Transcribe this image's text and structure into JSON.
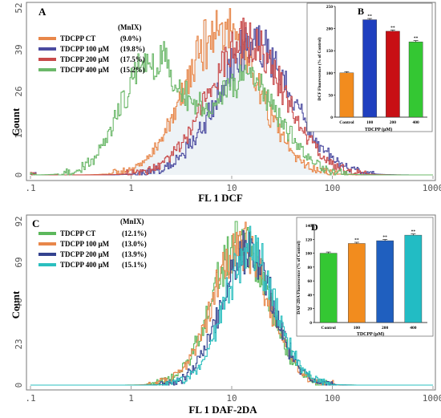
{
  "chart_data": [
    {
      "type": "line",
      "panel": "A",
      "xlabel": "FL 1 DCF",
      "ylabel": "Count",
      "xscale": "log",
      "xlim": [
        0.1,
        1000
      ],
      "ylim": [
        0,
        52
      ],
      "x_ticks": [
        ".1",
        "1",
        "10",
        "100",
        "1000"
      ],
      "y_ticks": [
        "0",
        "13",
        "26",
        "39",
        "52"
      ],
      "legend_header": "(MnIX)",
      "series": [
        {
          "name": "TDCPP CT",
          "mnix": "(9.0%)",
          "color": "#e8874a",
          "peak_x": 8,
          "peak_y": 46,
          "spread": 0.36
        },
        {
          "name": "TDCPP 100 µM",
          "mnix": "(19.8%)",
          "color": "#4b4ba0",
          "peak_x": 17,
          "peak_y": 40,
          "spread": 0.38
        },
        {
          "name": "TDCPP 200 µM",
          "mnix": "(17.5%)",
          "color": "#c84a4a",
          "peak_x": 14,
          "peak_y": 42,
          "spread": 0.38
        },
        {
          "name": "TDCPP 400 µM",
          "mnix": "(15.2%)",
          "color": "#6cb86a",
          "peak_x": 1.6,
          "peak_y": 36,
          "spread": 0.3,
          "second_peak_x": 14,
          "second_peak_y": 30
        }
      ]
    },
    {
      "type": "bar",
      "panel": "B",
      "xlabel": "TDCPP (µM)",
      "ylabel": "DCF Fluorescence (% of Control)",
      "ylim": [
        0,
        250
      ],
      "y_ticks": [
        "0",
        "50",
        "100",
        "150",
        "200",
        "250"
      ],
      "categories": [
        "Control",
        "100",
        "200",
        "400"
      ],
      "values": [
        100,
        220,
        194,
        170
      ],
      "colors": [
        "#f28c1e",
        "#1f3fbf",
        "#c80f14",
        "#34c733"
      ],
      "annotations": [
        "",
        "**",
        "**",
        "**"
      ]
    },
    {
      "type": "line",
      "panel": "C",
      "xlabel": "FL 1 DAF-2DA",
      "ylabel": "Count",
      "xscale": "log",
      "xlim": [
        0.1,
        1000
      ],
      "ylim": [
        0,
        92
      ],
      "x_ticks": [
        ".1",
        "1",
        "10",
        "100",
        "1000"
      ],
      "y_ticks": [
        "0",
        "23",
        "46",
        "69",
        "92"
      ],
      "legend_header": "(MnIX)",
      "series": [
        {
          "name": "TDCPP CT",
          "mnix": "(12.1%)",
          "color": "#5cb85c",
          "peak_x": 12,
          "peak_y": 80,
          "spread": 0.28
        },
        {
          "name": "TDCPP 100 µM",
          "mnix": "(13.0%)",
          "color": "#e8874a",
          "peak_x": 12,
          "peak_y": 78,
          "spread": 0.28
        },
        {
          "name": "TDCPP 200 µM",
          "mnix": "(13.9%)",
          "color": "#34438f",
          "peak_x": 14,
          "peak_y": 76,
          "spread": 0.26
        },
        {
          "name": "TDCPP 400 µM",
          "mnix": "(15.1%)",
          "color": "#2bbfbf",
          "peak_x": 15,
          "peak_y": 74,
          "spread": 0.26
        }
      ]
    },
    {
      "type": "bar",
      "panel": "D",
      "xlabel": "TDCPP (µM)",
      "ylabel": "DAF-2DA Fluorescence (% of Control)",
      "ylim": [
        0,
        140
      ],
      "y_ticks": [
        "0",
        "20",
        "40",
        "60",
        "80",
        "100",
        "120",
        "140"
      ],
      "categories": [
        "Control",
        "100",
        "200",
        "400"
      ],
      "values": [
        100,
        114,
        118,
        126
      ],
      "colors": [
        "#34c733",
        "#f28c1e",
        "#1f5fbf",
        "#22bcc4"
      ],
      "annotations": [
        "",
        "**",
        "**",
        "**"
      ]
    }
  ]
}
